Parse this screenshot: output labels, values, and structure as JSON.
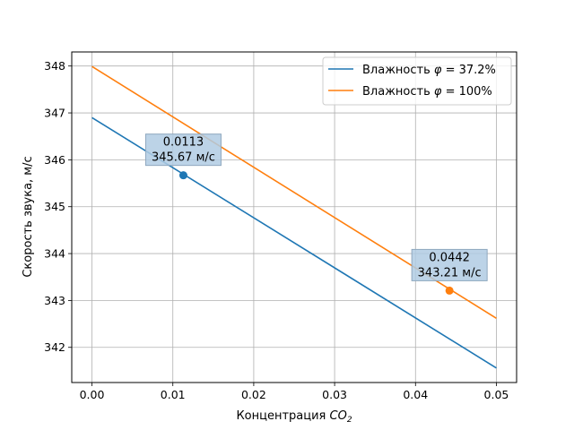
{
  "chart_data": {
    "type": "line",
    "xlabel": "Концентрация CO₂",
    "xlabel_main": "Концентрация ",
    "xlabel_var": "CO",
    "xlabel_sub": "2",
    "ylabel": "Скорость звука, м/с",
    "xlim": [
      -0.0025,
      0.0525
    ],
    "ylim": [
      341.25,
      348.3
    ],
    "xticks": [
      0.0,
      0.01,
      0.02,
      0.03,
      0.04,
      0.05
    ],
    "xtick_labels": [
      "0.00",
      "0.01",
      "0.02",
      "0.03",
      "0.04",
      "0.05"
    ],
    "yticks": [
      342,
      343,
      344,
      345,
      346,
      347,
      348
    ],
    "ytick_labels": [
      "342",
      "343",
      "344",
      "345",
      "346",
      "347",
      "348"
    ],
    "grid": true,
    "legend_position": "top-right",
    "series": [
      {
        "name": "Влажность φ = 37.2%",
        "name_pre": "Влажность ",
        "name_var": "φ",
        "name_post": " = 37.2%",
        "color": "#1f77b4",
        "x": [
          0.0,
          0.05
        ],
        "y": [
          346.9,
          341.56
        ]
      },
      {
        "name": "Влажность φ = 100%",
        "name_pre": "Влажность ",
        "name_var": "φ",
        "name_post": " = 100%",
        "color": "#ff7f0e",
        "x": [
          0.0,
          0.05
        ],
        "y": [
          347.99,
          342.62
        ]
      }
    ],
    "annotations": [
      {
        "series": 0,
        "x": 0.0113,
        "y": 345.67,
        "line1": "0.0113",
        "line2": "345.67 м/с"
      },
      {
        "series": 1,
        "x": 0.0442,
        "y": 343.21,
        "line1": "0.0442",
        "line2": "343.21 м/с"
      }
    ],
    "annotation_box_color": "#b0cbe3"
  }
}
